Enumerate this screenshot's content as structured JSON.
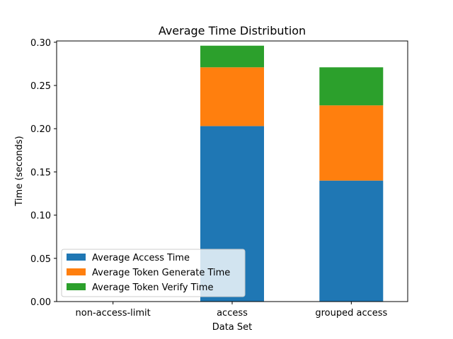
{
  "chart_data": {
    "type": "bar",
    "stacked": true,
    "title": "Average Time Distribution",
    "xlabel": "Data Set",
    "ylabel": "Time (seconds)",
    "categories": [
      "non-access-limit",
      "access",
      "grouped access"
    ],
    "series": [
      {
        "name": "Average Access Time",
        "color": "#1f77b4",
        "values": [
          0,
          0.203,
          0.14
        ]
      },
      {
        "name": "Average Token Generate Time",
        "color": "#ff7f0e",
        "values": [
          0,
          0.068,
          0.087
        ]
      },
      {
        "name": "Average Token Verify Time",
        "color": "#2ca02c",
        "values": [
          0,
          0.025,
          0.044
        ]
      }
    ],
    "ylim": [
      0,
      0.3
    ],
    "yticks": [
      "0.00",
      "0.05",
      "0.10",
      "0.15",
      "0.20",
      "0.25",
      "0.30"
    ],
    "grid": false,
    "legend_position": "lower-left"
  }
}
